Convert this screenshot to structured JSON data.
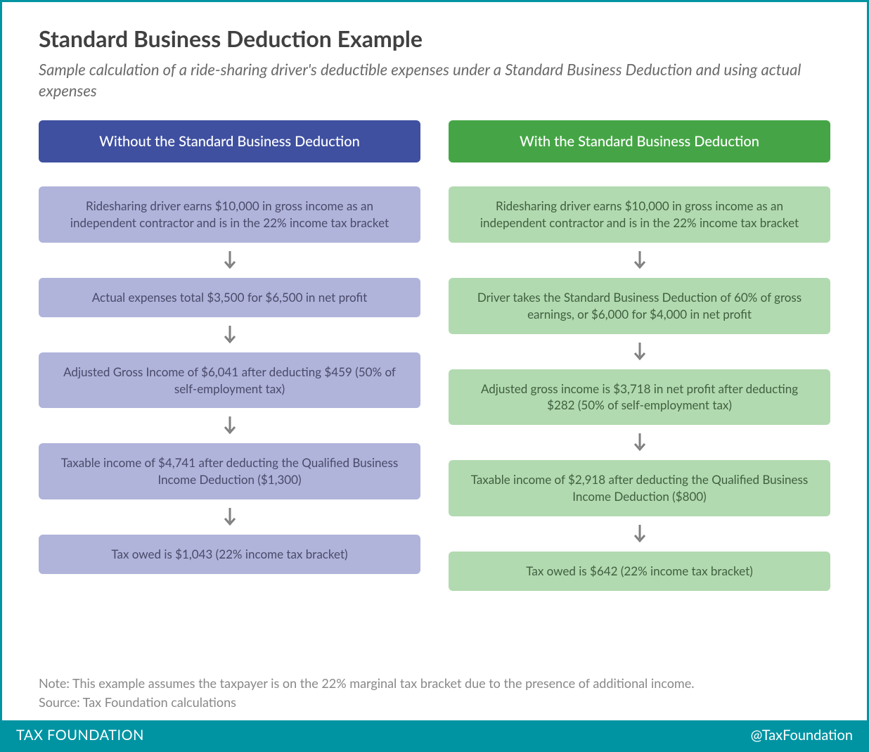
{
  "title": "Standard Business Deduction Example",
  "subtitle": "Sample calculation of a ride-sharing driver's deductible expenses under a Standard Business Deduction and using actual expenses",
  "colors": {
    "border": "#0094a3",
    "footer_bg": "#0094a3",
    "footer_text": "#ffffff",
    "title_text": "#404040",
    "subtitle_text": "#6a6a6a",
    "notes_text": "#888888",
    "arrow": "#808080"
  },
  "left": {
    "header": "Without the Standard Business Deduction",
    "header_bg": "#3f50a0",
    "header_text": "#ffffff",
    "step_bg": "#b0b4db",
    "step_text": "#4a4a68",
    "steps": [
      "Ridesharing driver earns $10,000 in gross income as an independent contractor and is in the 22% income tax bracket",
      "Actual expenses total $3,500 for $6,500 in net profit",
      "Adjusted Gross Income of $6,041 after deducting $459 (50% of self-employment tax)",
      "Taxable income of $4,741 after deducting the Qualified Business Income Deduction ($1,300)",
      "Tax owed is $1,043 (22% income tax bracket)"
    ]
  },
  "right": {
    "header": "With the Standard Business Deduction",
    "header_bg": "#45a546",
    "header_text": "#ffffff",
    "step_bg": "#b2dab0",
    "step_text": "#3f5f3f",
    "steps": [
      "Ridesharing driver earns $10,000 in gross income as an independent contractor and is in the 22% income tax bracket",
      "Driver takes the Standard Business Deduction of 60% of gross earnings, or $6,000 for $4,000 in net profit",
      "Adjusted gross income is $3,718 in net profit after deducting $282 (50% of self-employment tax)",
      "Taxable income of $2,918 after deducting the Qualified Business Income Deduction ($800)",
      "Tax owed is $642 (22% income tax bracket)"
    ]
  },
  "note": "Note: This example assumes the taxpayer is on the 22% marginal tax bracket due to the presence of additional income.",
  "source": "Source: Tax Foundation calculations",
  "footer": {
    "left": "TAX FOUNDATION",
    "right": "@TaxFoundation"
  }
}
